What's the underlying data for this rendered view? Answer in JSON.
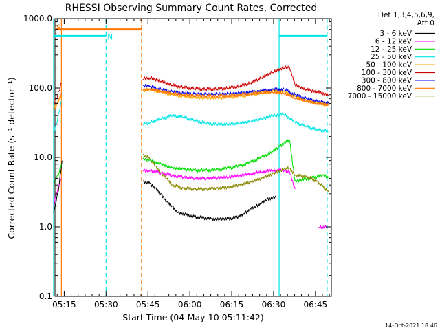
{
  "chart_data": {
    "type": "line",
    "title": "RHESSI Observing Summary Count Rates, Corrected",
    "xlabel": "Start Time (04-May-10 05:11:42)",
    "ylabel": "Corrected Count Rate (s⁻¹ detector⁻¹)",
    "ylog": true,
    "ylim": [
      0.1,
      1000
    ],
    "xlim_minutes": [
      0,
      99
    ],
    "x_unit": "minutes since 05:11:42",
    "x_ticks": [
      {
        "label": "05:15",
        "min": 3.3
      },
      {
        "label": "05:30",
        "min": 18.3
      },
      {
        "label": "05:45",
        "min": 33.3
      },
      {
        "label": "06:00",
        "min": 48.3
      },
      {
        "label": "06:15",
        "min": 63.3
      },
      {
        "label": "06:30",
        "min": 78.3
      },
      {
        "label": "06:45",
        "min": 93.3
      }
    ],
    "y_ticks": [
      {
        "label": "0.1",
        "v": 0.1
      },
      {
        "label": "1.0",
        "v": 1
      },
      {
        "label": "10.0",
        "v": 10
      },
      {
        "label": "100.0",
        "v": 100
      },
      {
        "label": "1000.0",
        "v": 1000
      }
    ],
    "legend": {
      "header1": "Det 1,3,4,5,6,9,",
      "header2": "Att 0",
      "placement": "right"
    },
    "series": [
      {
        "name": "3 - 6 keV",
        "color": "#000000",
        "segments": [
          {
            "x": [
              -0.5,
              0.5,
              1.5,
              2.5
            ],
            "y": [
              1.6,
              2.4,
              4,
              9
            ]
          },
          {
            "x": [
              31.5,
              34,
              36,
              38,
              40,
              42,
              44,
              50,
              56,
              62,
              66,
              68,
              70,
              72,
              74,
              76,
              78,
              79
            ],
            "y": [
              4.5,
              4.2,
              3.6,
              3,
              2.3,
              2,
              1.6,
              1.4,
              1.3,
              1.3,
              1.4,
              1.6,
              1.8,
              2,
              2.2,
              2.5,
              2.6,
              2.8
            ]
          }
        ]
      },
      {
        "name": "6 - 12 keV",
        "color": "#ff00ff",
        "segments": [
          {
            "x": [
              -0.5,
              0.5,
              1.5,
              2.3
            ],
            "y": [
              2,
              3,
              4,
              5
            ]
          },
          {
            "x": [
              31.5,
              34,
              38,
              42,
              46,
              50,
              54,
              58,
              62,
              66,
              70,
              74,
              78,
              82,
              84,
              86
            ],
            "y": [
              6.5,
              6.5,
              6,
              5.5,
              5.2,
              5,
              5,
              5.1,
              5.2,
              5.5,
              5.8,
              6.2,
              6.5,
              6.5,
              6.3,
              3.5
            ]
          },
          {
            "x": [
              94.5,
              97.5
            ],
            "y": [
              1,
              1
            ]
          }
        ]
      },
      {
        "name": "12 - 25 keV",
        "color": "#00dd00",
        "segments": [
          {
            "x": [
              -0.5,
              0.5,
              1.5,
              2.3
            ],
            "y": [
              4,
              5,
              6,
              8
            ]
          },
          {
            "x": [
              31.5,
              34,
              38,
              42,
              46,
              50,
              54,
              58,
              62,
              66,
              70,
              74,
              78,
              80,
              82,
              84,
              86
            ],
            "y": [
              9.5,
              9,
              8,
              7,
              6.8,
              6.5,
              6.5,
              6.6,
              7,
              7.5,
              8.5,
              10,
              12,
              14,
              16,
              18,
              4.5
            ]
          },
          {
            "x": [
              86,
              96,
              98
            ],
            "y": [
              4.5,
              5.5,
              5.3
            ]
          }
        ]
      },
      {
        "name": "25 - 50 keV",
        "color": "#00e5e5",
        "segments": [
          {
            "x": [
              -0.5,
              0.5,
              1.5,
              2.3
            ],
            "y": [
              22,
              30,
              45,
              65
            ]
          },
          {
            "x": [
              31.5,
              34,
              38,
              42,
              46,
              50,
              54,
              58,
              62,
              66,
              70,
              74,
              78,
              82,
              86,
              90,
              94,
              98
            ],
            "y": [
              30,
              32,
              36,
              40,
              38,
              34,
              31,
              30,
              30,
              31,
              33,
              36,
              40,
              42,
              32,
              28,
              25,
              24
            ]
          }
        ]
      },
      {
        "name": "50 - 100 keV",
        "color": "#ffaa00",
        "segments": [
          {
            "x": [
              -0.5,
              0.5,
              1.5,
              2.3
            ],
            "y": [
              48,
              55,
              68,
              80
            ]
          },
          {
            "x": [
              31.5,
              34,
              38,
              42,
              46,
              50,
              54,
              58,
              62,
              66,
              70,
              74,
              78,
              82,
              86,
              90,
              94,
              98
            ],
            "y": [
              90,
              95,
              88,
              80,
              76,
              73,
              72,
              72,
              74,
              76,
              80,
              86,
              90,
              88,
              75,
              65,
              60,
              57
            ]
          }
        ]
      },
      {
        "name": "100 - 300 keV",
        "color": "#cc0000",
        "segments": [
          {
            "x": [
              -0.5,
              0.5,
              1.5,
              2.3
            ],
            "y": [
              60,
              70,
              90,
              120
            ]
          },
          {
            "x": [
              31.5,
              34,
              38,
              42,
              46,
              50,
              54,
              58,
              62,
              66,
              70,
              74,
              78,
              82,
              84,
              86,
              90,
              94,
              98
            ],
            "y": [
              135,
              140,
              125,
              110,
              102,
              98,
              96,
              97,
              100,
              106,
              118,
              140,
              170,
              195,
              200,
              110,
              95,
              88,
              80
            ]
          }
        ]
      },
      {
        "name": "300 - 800 keV",
        "color": "#0000ee",
        "segments": [
          {
            "x": [
              31.5,
              34,
              38,
              42,
              46,
              50,
              54,
              58,
              62,
              66,
              70,
              74,
              78,
              82,
              86,
              90,
              94,
              98
            ],
            "y": [
              108,
              104,
              95,
              88,
              84,
              82,
              81,
              81,
              82,
              84,
              87,
              91,
              95,
              96,
              80,
              70,
              64,
              60
            ]
          }
        ]
      },
      {
        "name": "800 - 7000 keV",
        "color": "#ff7700",
        "segments": [
          {
            "x": [
              -0.5,
              0.5,
              1.5,
              2.3
            ],
            "y": [
              50,
              60,
              70,
              82
            ]
          },
          {
            "x": [
              31.5,
              34,
              38,
              42,
              46,
              50,
              54,
              58,
              62,
              66,
              70,
              74,
              78,
              82,
              86,
              90,
              94,
              98
            ],
            "y": [
              95,
              96,
              90,
              84,
              80,
              78,
              77,
              77,
              78,
              80,
              83,
              86,
              88,
              85,
              72,
              65,
              60,
              58
            ]
          }
        ]
      },
      {
        "name": "7000 - 15000 keV",
        "color": "#888800",
        "segments": [
          {
            "x": [
              31.5,
              34,
              36,
              38,
              40,
              42,
              46,
              50,
              54,
              58,
              62,
              66,
              70,
              74,
              78,
              80,
              82,
              84,
              86,
              90,
              94,
              98
            ],
            "y": [
              11,
              9.5,
              7.5,
              6,
              5,
              4,
              3.6,
              3.5,
              3.5,
              3.6,
              3.7,
              4,
              4.4,
              5,
              5.8,
              6.2,
              6.8,
              7,
              5.5,
              5.3,
              4.5,
              3.2
            ]
          }
        ]
      }
    ],
    "overlays": {
      "saa_bar": {
        "label": "S",
        "color": "#ff7700",
        "x": [
          0,
          31
        ],
        "y": 700
      },
      "night_bars": [
        {
          "label": "N",
          "color": "#00e5e5",
          "x": [
            -0.5,
            18.3
          ],
          "y": 560,
          "label_x": 18.3
        },
        {
          "label": "",
          "color": "#00e5e5",
          "x": [
            80.3,
            97.5
          ],
          "y": 560,
          "label_x": null
        }
      ],
      "vertical_lines": [
        {
          "color": "#00e5e5",
          "style": "solid",
          "x": -0.5
        },
        {
          "color": "#ff7700",
          "style": "solid",
          "x": 2.3
        },
        {
          "color": "#00e5e5",
          "style": "dashed",
          "x": 18.3
        },
        {
          "color": "#ff7700",
          "style": "dashed",
          "x": 31
        },
        {
          "color": "#00e5e5",
          "style": "solid",
          "x": 80.3
        },
        {
          "color": "#00e5e5",
          "style": "dashed",
          "x": 97.5
        }
      ]
    },
    "footer": "14-Oct-2021 18:46"
  }
}
